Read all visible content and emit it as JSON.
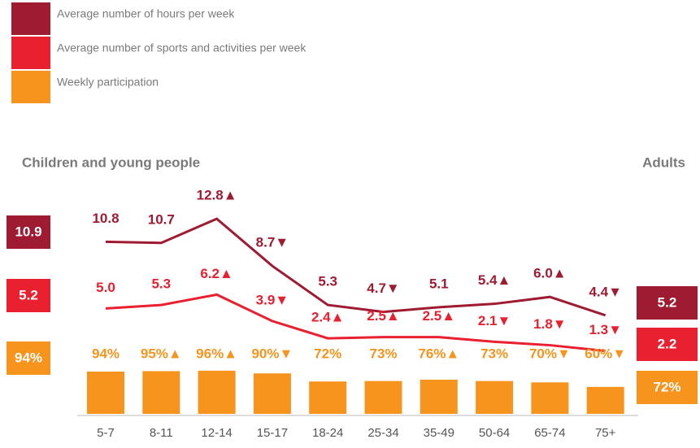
{
  "chart_data": {
    "type": "line",
    "categories": [
      "5-7",
      "8-11",
      "12-14",
      "15-17",
      "18-24",
      "25-34",
      "35-49",
      "50-64",
      "65-74",
      "75+"
    ],
    "series": [
      {
        "name": "Average number of hours per week",
        "type": "line",
        "color": "#9e1b32",
        "values": [
          10.8,
          10.7,
          12.8,
          8.7,
          5.3,
          4.7,
          5.1,
          5.4,
          6.0,
          4.4
        ],
        "value_labels": [
          "10.8",
          "10.7",
          "12.8▲",
          "8.7▼",
          "5.3",
          "4.7▼",
          "5.1",
          "5.4▲",
          "6.0▲",
          "4.4▼"
        ]
      },
      {
        "name": "Average number of sports and activities per week",
        "type": "line",
        "color": "#e8202f",
        "values": [
          5.0,
          5.3,
          6.2,
          3.9,
          2.4,
          2.5,
          2.5,
          2.1,
          1.8,
          1.3
        ],
        "value_labels": [
          "5.0",
          "5.3",
          "6.2▲",
          "3.9▼",
          "2.4▲",
          "2.5▲",
          "2.5▲",
          "2.1▼",
          "1.8▼",
          "1.3▼"
        ]
      },
      {
        "name": "Weekly participation",
        "type": "bar",
        "axis": "y2",
        "color": "#f7941d",
        "values": [
          94,
          95,
          96,
          90,
          72,
          73,
          76,
          73,
          70,
          60
        ],
        "value_labels": [
          "94%",
          "95%▲",
          "96%▲",
          "90%▼",
          "72%",
          "73%",
          "76%▲",
          "73%",
          "70%▼",
          "60%▼"
        ]
      }
    ],
    "groups": [
      {
        "name": "Children and young people",
        "values": [
          10.9,
          5.2,
          94
        ],
        "value_labels": [
          "10.9",
          "5.2",
          "94%"
        ]
      },
      {
        "name": "Adults",
        "values": [
          5.2,
          2.2,
          72
        ],
        "value_labels": [
          "5.2",
          "2.2",
          "72%"
        ]
      }
    ],
    "ylim": [
      0,
      15
    ],
    "y2lim": [
      0,
      100
    ],
    "legend": "top-left"
  }
}
